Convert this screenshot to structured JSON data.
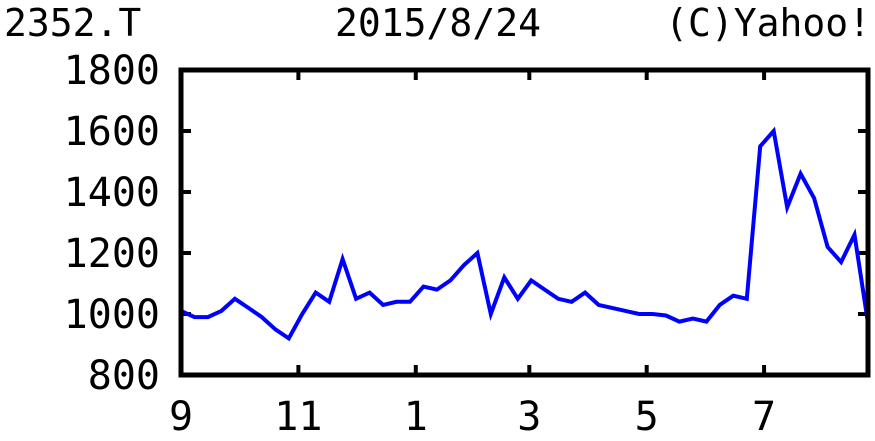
{
  "header": {
    "ticker": "2352.T",
    "date": "2015/8/24",
    "copyright": "(C)Yahoo!"
  },
  "chart_data": {
    "type": "line",
    "title": "",
    "xlabel": "",
    "ylabel": "",
    "ylim": [
      800,
      1800
    ],
    "xlim": [
      "2014-09-01",
      "2015-08-24"
    ],
    "grid": false,
    "line_color": "#0000ff",
    "yticks": [
      800,
      1000,
      1200,
      1400,
      1600,
      1800
    ],
    "xticks": [
      {
        "label": "9",
        "date": "2014-09-01"
      },
      {
        "label": "11",
        "date": "2014-11-01"
      },
      {
        "label": "1",
        "date": "2015-01-01"
      },
      {
        "label": "3",
        "date": "2015-03-01"
      },
      {
        "label": "5",
        "date": "2015-05-01"
      },
      {
        "label": "7",
        "date": "2015-07-01"
      }
    ],
    "x": [
      "2014-09-01",
      "2014-09-08",
      "2014-09-15",
      "2014-09-22",
      "2014-09-29",
      "2014-10-06",
      "2014-10-13",
      "2014-10-20",
      "2014-10-27",
      "2014-11-03",
      "2014-11-10",
      "2014-11-17",
      "2014-11-24",
      "2014-12-01",
      "2014-12-08",
      "2014-12-15",
      "2014-12-22",
      "2014-12-29",
      "2015-01-05",
      "2015-01-12",
      "2015-01-19",
      "2015-01-26",
      "2015-02-02",
      "2015-02-09",
      "2015-02-16",
      "2015-02-23",
      "2015-03-02",
      "2015-03-09",
      "2015-03-16",
      "2015-03-23",
      "2015-03-30",
      "2015-04-06",
      "2015-04-13",
      "2015-04-20",
      "2015-04-27",
      "2015-05-04",
      "2015-05-11",
      "2015-05-18",
      "2015-05-25",
      "2015-06-01",
      "2015-06-08",
      "2015-06-15",
      "2015-06-22",
      "2015-06-29",
      "2015-07-06",
      "2015-07-13",
      "2015-07-20",
      "2015-07-27",
      "2015-08-03",
      "2015-08-10",
      "2015-08-17",
      "2015-08-24"
    ],
    "values": [
      1010,
      990,
      990,
      1010,
      1050,
      1020,
      990,
      950,
      920,
      1000,
      1070,
      1040,
      1180,
      1050,
      1070,
      1030,
      1040,
      1040,
      1090,
      1080,
      1110,
      1160,
      1200,
      1000,
      1120,
      1050,
      1110,
      1080,
      1050,
      1040,
      1070,
      1030,
      1020,
      1010,
      1000,
      1000,
      995,
      975,
      985,
      975,
      1030,
      1060,
      1050,
      1550,
      1600,
      1350,
      1460,
      1380,
      1220,
      1170,
      1260,
      970
    ]
  }
}
